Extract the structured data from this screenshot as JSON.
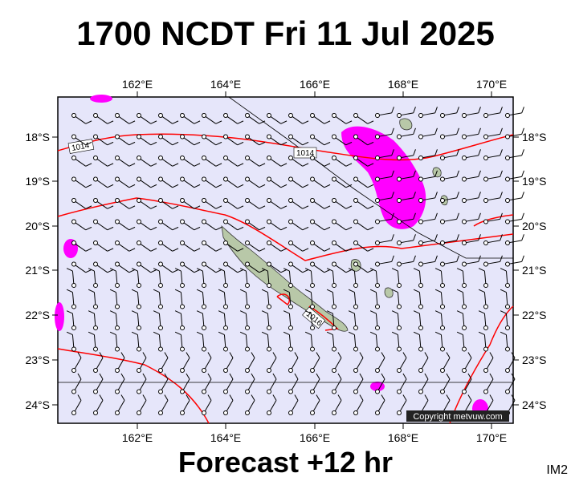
{
  "header": {
    "title": "1700 NCDT Fri 11 Jul 2025"
  },
  "footer": {
    "forecast": "Forecast +12 hr",
    "code": "IM2"
  },
  "map": {
    "lon_labels": [
      "162°E",
      "164°E",
      "166°E",
      "168°E",
      "170°E"
    ],
    "lat_labels": [
      "18°S",
      "19°S",
      "20°S",
      "21°S",
      "22°S",
      "23°S",
      "24°S"
    ],
    "isobar_labels": [
      "1014",
      "1014",
      "1016"
    ],
    "copyright": "Copyright metvuw.com",
    "colors": {
      "ocean": "#e6e6fa",
      "isobar": "#ff0000",
      "precip": "#ff00ff",
      "land": "#b8c8a8"
    }
  }
}
